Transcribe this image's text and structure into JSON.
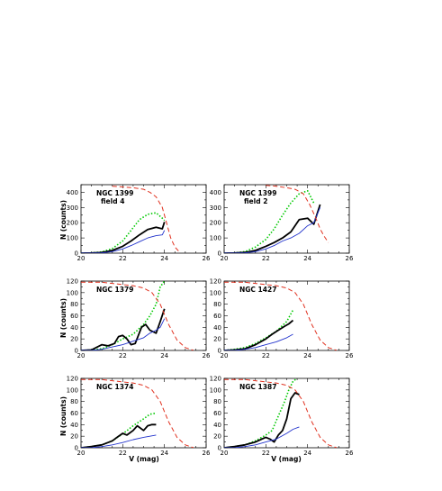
{
  "figure": {
    "ylabel": "N (counts)",
    "xlabel": "V (mag)"
  },
  "colors": {
    "black": "#000000",
    "green": "#00c800",
    "blue": "#2233cc",
    "red": "#e0301e"
  },
  "chart_data": [
    {
      "type": "line",
      "label_lines": [
        "NGC 1399",
        "field 4"
      ],
      "xlim": [
        20,
        26
      ],
      "ylim": [
        0,
        450
      ],
      "xticks": [
        20,
        22,
        24,
        26
      ],
      "yticks": [
        0,
        100,
        200,
        300,
        400
      ],
      "series": [
        {
          "color": "green",
          "style": "dotted",
          "x": [
            20,
            20.5,
            21,
            21.5,
            22,
            22.4,
            22.8,
            23.2,
            23.6,
            23.9,
            24.0
          ],
          "y": [
            0,
            2,
            8,
            30,
            80,
            150,
            220,
            255,
            265,
            230,
            215
          ]
        },
        {
          "color": "black",
          "style": "solid",
          "x": [
            20,
            20.5,
            21,
            21.5,
            22,
            22.4,
            22.8,
            23.2,
            23.6,
            23.9,
            24.0
          ],
          "y": [
            0,
            1,
            4,
            18,
            45,
            80,
            120,
            155,
            170,
            160,
            205
          ]
        },
        {
          "color": "blue",
          "style": "solid",
          "x": [
            20,
            20.5,
            21,
            21.5,
            22,
            22.4,
            22.8,
            23.2,
            23.6,
            23.9,
            24.0
          ],
          "y": [
            0,
            0,
            2,
            10,
            28,
            50,
            75,
            100,
            115,
            120,
            150
          ]
        },
        {
          "color": "red",
          "style": "dashed",
          "x": [
            21.5,
            22,
            22.5,
            23,
            23.3,
            23.6,
            23.9,
            24.1,
            24.3,
            24.5,
            24.7
          ],
          "y": [
            440,
            435,
            430,
            420,
            400,
            370,
            300,
            200,
            100,
            40,
            10
          ]
        }
      ]
    },
    {
      "type": "line",
      "label_lines": [
        "NGC 1399",
        "field 2"
      ],
      "xlim": [
        20,
        26
      ],
      "ylim": [
        0,
        450
      ],
      "xticks": [
        20,
        22,
        24,
        26
      ],
      "yticks": [
        0,
        100,
        200,
        300,
        400
      ],
      "series": [
        {
          "color": "green",
          "style": "dotted",
          "x": [
            20,
            20.5,
            21,
            21.5,
            22,
            22.4,
            22.8,
            23.2,
            23.6,
            24.0,
            24.3
          ],
          "y": [
            0,
            2,
            10,
            40,
            90,
            160,
            250,
            330,
            390,
            410,
            330
          ]
        },
        {
          "color": "black",
          "style": "solid",
          "x": [
            20,
            20.5,
            21,
            21.5,
            22,
            22.4,
            22.8,
            23.2,
            23.6,
            24.0,
            24.3,
            24.6
          ],
          "y": [
            0,
            1,
            5,
            18,
            45,
            70,
            100,
            140,
            220,
            230,
            190,
            320
          ]
        },
        {
          "color": "blue",
          "style": "solid",
          "x": [
            20,
            20.5,
            21,
            21.5,
            22,
            22.4,
            22.8,
            23.2,
            23.6,
            24.0,
            24.3,
            24.6
          ],
          "y": [
            0,
            0,
            2,
            10,
            28,
            50,
            80,
            100,
            130,
            180,
            200,
            300
          ]
        },
        {
          "color": "red",
          "style": "dashed",
          "x": [
            22,
            22.5,
            23,
            23.4,
            23.8,
            24.1,
            24.4,
            24.6,
            24.8,
            25.0
          ],
          "y": [
            445,
            440,
            430,
            420,
            390,
            320,
            230,
            160,
            110,
            70
          ]
        }
      ]
    },
    {
      "type": "line",
      "label_lines": [
        "NGC 1379"
      ],
      "xlim": [
        20,
        26
      ],
      "ylim": [
        0,
        120
      ],
      "xticks": [
        20,
        22,
        24,
        26
      ],
      "yticks": [
        0,
        20,
        40,
        60,
        80,
        100,
        120
      ],
      "series": [
        {
          "color": "green",
          "style": "dotted",
          "x": [
            20,
            20.5,
            21,
            21.5,
            22,
            22.5,
            23,
            23.3,
            23.6,
            23.8,
            24.0
          ],
          "y": [
            0,
            1,
            3,
            10,
            20,
            28,
            45,
            60,
            80,
            110,
            120
          ]
        },
        {
          "color": "black",
          "style": "solid",
          "x": [
            20,
            20.5,
            21,
            21.3,
            21.6,
            21.8,
            22.0,
            22.2,
            22.4,
            22.6,
            22.9,
            23.1,
            23.3,
            23.6,
            23.8,
            24.0
          ],
          "y": [
            0,
            1,
            10,
            8,
            12,
            24,
            26,
            20,
            10,
            12,
            40,
            45,
            35,
            30,
            50,
            72
          ]
        },
        {
          "color": "blue",
          "style": "solid",
          "x": [
            20,
            20.5,
            21,
            21.5,
            22,
            22.5,
            23,
            23.3,
            23.6,
            23.8,
            24.0
          ],
          "y": [
            0,
            0,
            2,
            6,
            10,
            16,
            22,
            30,
            35,
            40,
            55
          ]
        },
        {
          "color": "red",
          "style": "dashed",
          "x": [
            20,
            21,
            21.5,
            22,
            22.5,
            23,
            23.4,
            23.8,
            24.2,
            24.6,
            25.0,
            25.4
          ],
          "y": [
            118,
            118,
            116,
            114,
            112,
            108,
            100,
            80,
            45,
            18,
            5,
            0
          ]
        }
      ]
    },
    {
      "type": "line",
      "label_lines": [
        "NGC 1427"
      ],
      "xlim": [
        20,
        26
      ],
      "ylim": [
        0,
        120
      ],
      "xticks": [
        20,
        22,
        24,
        26
      ],
      "yticks": [
        0,
        20,
        40,
        60,
        80,
        100,
        120
      ],
      "series": [
        {
          "color": "green",
          "style": "dotted",
          "x": [
            20,
            20.5,
            21,
            21.5,
            22,
            22.5,
            23,
            23.3
          ],
          "y": [
            0,
            2,
            5,
            12,
            22,
            33,
            50,
            70
          ]
        },
        {
          "color": "black",
          "style": "solid",
          "x": [
            20,
            20.5,
            21,
            21.5,
            22,
            22.3,
            22.6,
            22.9,
            23.1,
            23.3
          ],
          "y": [
            0,
            1,
            3,
            10,
            20,
            28,
            35,
            42,
            46,
            52
          ]
        },
        {
          "color": "blue",
          "style": "solid",
          "x": [
            20,
            20.5,
            21,
            21.5,
            22,
            22.5,
            23,
            23.3
          ],
          "y": [
            0,
            0,
            2,
            5,
            10,
            15,
            22,
            28
          ]
        },
        {
          "color": "red",
          "style": "dashed",
          "x": [
            20,
            21,
            21.5,
            22,
            22.5,
            23,
            23.4,
            23.8,
            24.2,
            24.6,
            25.0,
            25.4
          ],
          "y": [
            118,
            118,
            116,
            114,
            112,
            108,
            100,
            80,
            45,
            18,
            5,
            0
          ]
        }
      ]
    },
    {
      "type": "line",
      "label_lines": [
        "NGC 1374"
      ],
      "xlim": [
        20,
        26
      ],
      "ylim": [
        0,
        120
      ],
      "xticks": [
        20,
        22,
        24,
        26
      ],
      "yticks": [
        0,
        20,
        40,
        60,
        80,
        100,
        120
      ],
      "series": [
        {
          "color": "green",
          "style": "dotted",
          "x": [
            20,
            20.5,
            21,
            21.5,
            22,
            22.5,
            23,
            23.3,
            23.6
          ],
          "y": [
            0,
            2,
            5,
            12,
            24,
            38,
            50,
            58,
            60
          ]
        },
        {
          "color": "black",
          "style": "solid",
          "x": [
            20,
            20.5,
            21,
            21.5,
            21.8,
            22.0,
            22.2,
            22.5,
            22.7,
            23.0,
            23.2,
            23.4,
            23.6
          ],
          "y": [
            0,
            2,
            5,
            12,
            20,
            25,
            22,
            30,
            38,
            30,
            38,
            40,
            40
          ]
        },
        {
          "color": "blue",
          "style": "solid",
          "x": [
            20,
            20.5,
            21,
            21.5,
            22,
            22.5,
            23,
            23.3,
            23.6
          ],
          "y": [
            0,
            0,
            2,
            5,
            9,
            14,
            18,
            20,
            22
          ]
        },
        {
          "color": "red",
          "style": "dashed",
          "x": [
            20,
            21,
            21.5,
            22,
            22.5,
            23,
            23.4,
            23.8,
            24.2,
            24.6,
            25.0,
            25.4
          ],
          "y": [
            118,
            118,
            116,
            114,
            112,
            108,
            100,
            80,
            45,
            18,
            5,
            0
          ]
        }
      ]
    },
    {
      "type": "line",
      "label_lines": [
        "NGC 1387"
      ],
      "xlim": [
        20,
        26
      ],
      "ylim": [
        0,
        120
      ],
      "xticks": [
        20,
        22,
        24,
        26
      ],
      "yticks": [
        0,
        20,
        40,
        60,
        80,
        100,
        120
      ],
      "series": [
        {
          "color": "green",
          "style": "dotted",
          "x": [
            20,
            20.5,
            21,
            21.5,
            22,
            22.3,
            22.6,
            22.9,
            23.1,
            23.3,
            23.5
          ],
          "y": [
            0,
            2,
            5,
            12,
            22,
            30,
            55,
            80,
            100,
            115,
            120
          ]
        },
        {
          "color": "black",
          "style": "solid",
          "x": [
            20,
            20.5,
            21,
            21.5,
            21.8,
            22.0,
            22.2,
            22.4,
            22.6,
            22.8,
            23.0,
            23.2,
            23.4,
            23.6
          ],
          "y": [
            0,
            2,
            5,
            10,
            15,
            18,
            15,
            10,
            22,
            30,
            50,
            85,
            95,
            92
          ]
        },
        {
          "color": "blue",
          "style": "solid",
          "x": [
            20,
            20.5,
            21,
            21.5,
            22,
            22.5,
            23,
            23.3,
            23.6
          ],
          "y": [
            0,
            0,
            2,
            5,
            10,
            15,
            25,
            32,
            36
          ]
        },
        {
          "color": "red",
          "style": "dashed",
          "x": [
            20,
            21,
            21.5,
            22,
            22.5,
            23,
            23.4,
            23.8,
            24.2,
            24.6,
            25.0,
            25.4
          ],
          "y": [
            118,
            118,
            116,
            114,
            112,
            108,
            100,
            80,
            45,
            18,
            5,
            0
          ]
        }
      ]
    }
  ]
}
